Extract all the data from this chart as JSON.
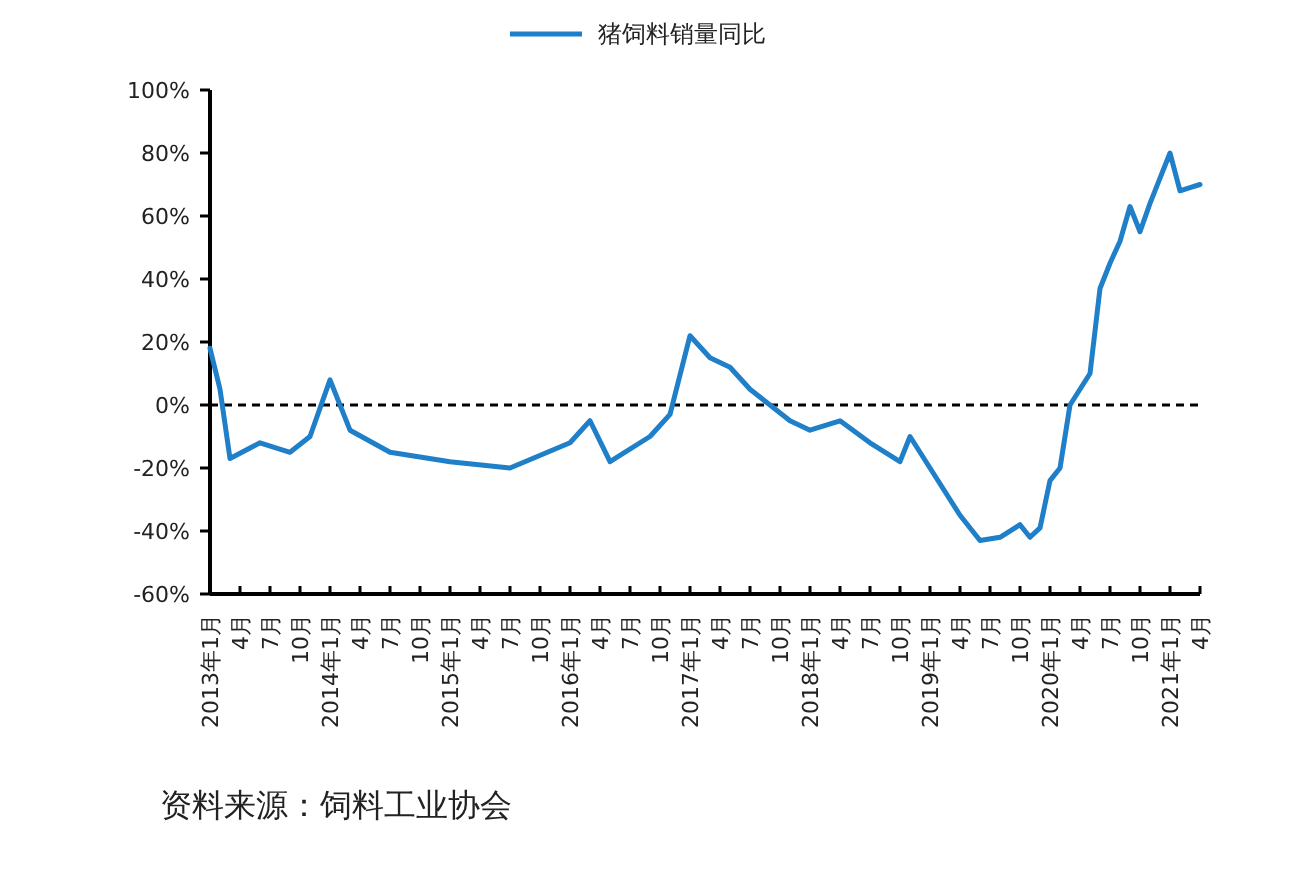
{
  "chart_data": {
    "type": "line",
    "x": [
      "2013-01",
      "2013-02",
      "2013-03",
      "2013-06",
      "2013-09",
      "2013-11",
      "2014-01",
      "2014-03",
      "2014-07",
      "2015-01",
      "2015-07",
      "2016-01",
      "2016-03",
      "2016-05",
      "2016-09",
      "2016-11",
      "2017-01",
      "2017-03",
      "2017-05",
      "2017-07",
      "2017-09",
      "2017-11",
      "2018-01",
      "2018-04",
      "2018-07",
      "2018-10",
      "2018-11",
      "2019-01",
      "2019-04",
      "2019-06",
      "2019-08",
      "2019-10",
      "2019-11",
      "2019-12",
      "2020-01",
      "2020-02",
      "2020-03",
      "2020-05",
      "2020-06",
      "2020-07",
      "2020-08",
      "2020-09",
      "2020-10",
      "2020-11",
      "2020-12",
      "2021-01",
      "2021-02",
      "2021-03",
      "2021-04"
    ],
    "series": [
      {
        "name": "猪饲料销量同比",
        "color": "#1f7fc8",
        "values": [
          18,
          5,
          -17,
          -12,
          -15,
          -10,
          8,
          -8,
          -15,
          -18,
          -20,
          -12,
          -5,
          -18,
          -10,
          -3,
          22,
          15,
          12,
          5,
          0,
          -5,
          -8,
          -5,
          -12,
          -18,
          -10,
          -20,
          -35,
          -43,
          -42,
          -38,
          -42,
          -39,
          -24,
          -20,
          0,
          10,
          37,
          45,
          52,
          63,
          55,
          64,
          72,
          80,
          68,
          69,
          70
        ]
      }
    ],
    "xlim": [
      "2013-01",
      "2021-04"
    ],
    "xticks": [
      {
        "value": "2013-01",
        "label": "2013年1月"
      },
      {
        "value": "2013-04",
        "label": "4月"
      },
      {
        "value": "2013-07",
        "label": "7月"
      },
      {
        "value": "2013-10",
        "label": "10月"
      },
      {
        "value": "2014-01",
        "label": "2014年1月"
      },
      {
        "value": "2014-04",
        "label": "4月"
      },
      {
        "value": "2014-07",
        "label": "7月"
      },
      {
        "value": "2014-10",
        "label": "10月"
      },
      {
        "value": "2015-01",
        "label": "2015年1月"
      },
      {
        "value": "2015-04",
        "label": "4月"
      },
      {
        "value": "2015-07",
        "label": "7月"
      },
      {
        "value": "2015-10",
        "label": "10月"
      },
      {
        "value": "2016-01",
        "label": "2016年1月"
      },
      {
        "value": "2016-04",
        "label": "4月"
      },
      {
        "value": "2016-07",
        "label": "7月"
      },
      {
        "value": "2016-10",
        "label": "10月"
      },
      {
        "value": "2017-01",
        "label": "2017年1月"
      },
      {
        "value": "2017-04",
        "label": "4月"
      },
      {
        "value": "2017-07",
        "label": "7月"
      },
      {
        "value": "2017-10",
        "label": "10月"
      },
      {
        "value": "2018-01",
        "label": "2018年1月"
      },
      {
        "value": "2018-04",
        "label": "4月"
      },
      {
        "value": "2018-07",
        "label": "7月"
      },
      {
        "value": "2018-10",
        "label": "10月"
      },
      {
        "value": "2019-01",
        "label": "2019年1月"
      },
      {
        "value": "2019-04",
        "label": "4月"
      },
      {
        "value": "2019-07",
        "label": "7月"
      },
      {
        "value": "2019-10",
        "label": "10月"
      },
      {
        "value": "2020-01",
        "label": "2020年1月"
      },
      {
        "value": "2020-04",
        "label": "4月"
      },
      {
        "value": "2020-07",
        "label": "7月"
      },
      {
        "value": "2020-10",
        "label": "10月"
      },
      {
        "value": "2021-01",
        "label": "2021年1月"
      },
      {
        "value": "2021-04",
        "label": "4月"
      }
    ],
    "ylim": [
      -60,
      100
    ],
    "yticks": [
      {
        "value": -60,
        "label": "-60%"
      },
      {
        "value": -40,
        "label": "-40%"
      },
      {
        "value": -20,
        "label": "-20%"
      },
      {
        "value": 0,
        "label": "0%"
      },
      {
        "value": 20,
        "label": "20%"
      },
      {
        "value": 40,
        "label": "40%"
      },
      {
        "value": 60,
        "label": "60%"
      },
      {
        "value": 80,
        "label": "80%"
      },
      {
        "value": 100,
        "label": "100%"
      }
    ],
    "ref_lines": [
      {
        "axis": "y",
        "value": 0,
        "color": "#000000",
        "line_style": "dashed"
      }
    ],
    "legend": "top",
    "grid": false,
    "marker": "none",
    "line_style": "solid",
    "annotations": [
      "资料来源：饲料工业协会"
    ]
  }
}
